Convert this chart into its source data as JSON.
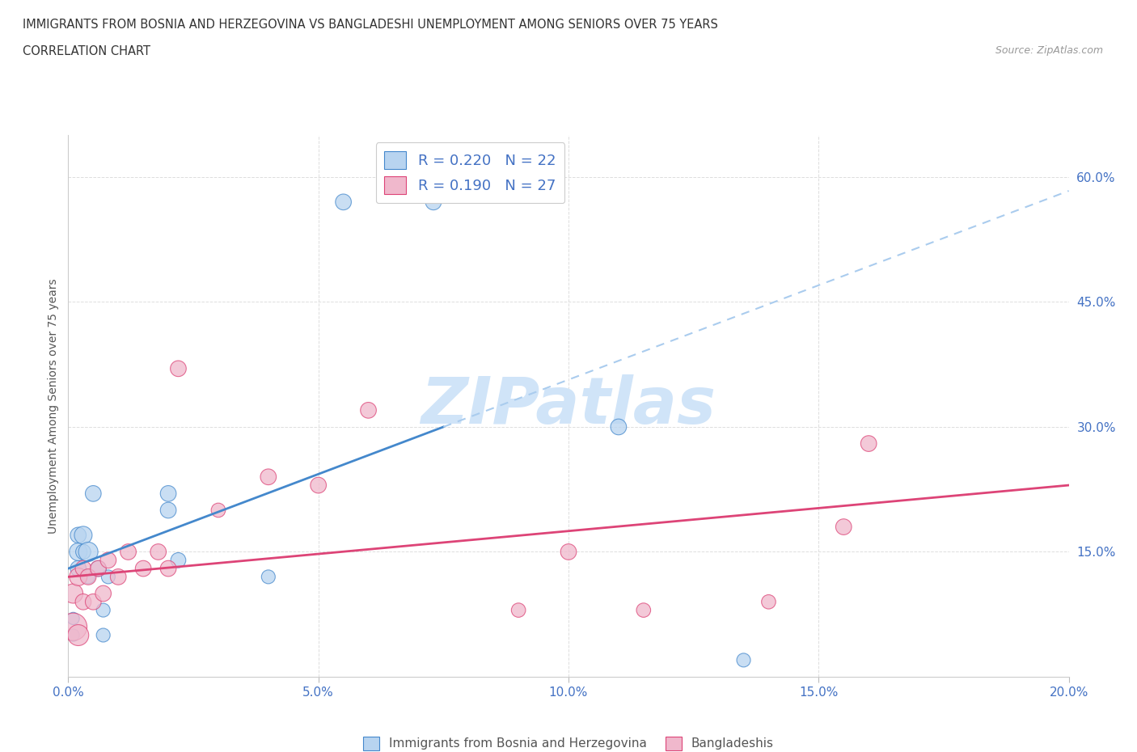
{
  "title": "IMMIGRANTS FROM BOSNIA AND HERZEGOVINA VS BANGLADESHI UNEMPLOYMENT AMONG SENIORS OVER 75 YEARS",
  "subtitle": "CORRELATION CHART",
  "source": "Source: ZipAtlas.com",
  "ylabel": "Unemployment Among Seniors over 75 years",
  "ytick_values": [
    0.0,
    0.15,
    0.3,
    0.45,
    0.6
  ],
  "ytick_labels": [
    "",
    "15.0%",
    "30.0%",
    "45.0%",
    "60.0%"
  ],
  "xtick_values": [
    0.0,
    0.05,
    0.1,
    0.15,
    0.2
  ],
  "xtick_labels": [
    "0.0%",
    "5.0%",
    "10.0%",
    "15.0%",
    "20.0%"
  ],
  "xlim": [
    0.0,
    0.2
  ],
  "ylim": [
    0.0,
    0.65
  ],
  "color_bosnia": "#b8d4f0",
  "color_bangladesh": "#f0b8cc",
  "color_line_bosnia": "#4488cc",
  "color_line_bangladesh": "#dd4477",
  "color_dashed_bosnia": "#aaccee",
  "color_text_blue": "#4472c4",
  "color_text_dark": "#333333",
  "color_source": "#999999",
  "background_color": "#ffffff",
  "grid_color": "#dddddd",
  "watermark": "ZIPatlas",
  "watermark_color": "#d0e4f8",
  "legend_r1": "R = 0.220",
  "legend_n1": "N = 22",
  "legend_r2": "R = 0.190",
  "legend_n2": "N = 27",
  "bos_line_x0": 0.0,
  "bos_line_y0": 0.13,
  "bos_line_x_solid_end": 0.075,
  "bos_line_slope": 2.267,
  "bang_line_x0": 0.0,
  "bang_line_y0": 0.12,
  "bang_line_x_end": 0.2,
  "bang_line_slope": 0.55,
  "bosnia_scatter_x": [
    0.001,
    0.001,
    0.002,
    0.002,
    0.002,
    0.003,
    0.003,
    0.004,
    0.004,
    0.005,
    0.006,
    0.007,
    0.007,
    0.008,
    0.02,
    0.02,
    0.022,
    0.04,
    0.055,
    0.073,
    0.11,
    0.135
  ],
  "bosnia_scatter_y": [
    0.05,
    0.07,
    0.13,
    0.15,
    0.17,
    0.15,
    0.17,
    0.12,
    0.15,
    0.22,
    0.13,
    0.05,
    0.08,
    0.12,
    0.2,
    0.22,
    0.14,
    0.12,
    0.57,
    0.57,
    0.3,
    0.02
  ],
  "bosnia_scatter_size": [
    120,
    120,
    200,
    250,
    200,
    180,
    250,
    150,
    300,
    200,
    200,
    150,
    150,
    150,
    200,
    200,
    180,
    150,
    200,
    200,
    200,
    150
  ],
  "bangladesh_scatter_x": [
    0.001,
    0.001,
    0.002,
    0.002,
    0.003,
    0.003,
    0.004,
    0.005,
    0.006,
    0.007,
    0.008,
    0.01,
    0.012,
    0.015,
    0.018,
    0.02,
    0.022,
    0.03,
    0.04,
    0.05,
    0.06,
    0.09,
    0.1,
    0.115,
    0.14,
    0.155,
    0.16
  ],
  "bangladesh_scatter_y": [
    0.06,
    0.1,
    0.05,
    0.12,
    0.09,
    0.13,
    0.12,
    0.09,
    0.13,
    0.1,
    0.14,
    0.12,
    0.15,
    0.13,
    0.15,
    0.13,
    0.37,
    0.2,
    0.24,
    0.23,
    0.32,
    0.08,
    0.15,
    0.08,
    0.09,
    0.18,
    0.28
  ],
  "bangladesh_scatter_size": [
    600,
    300,
    350,
    250,
    200,
    200,
    200,
    200,
    200,
    200,
    200,
    200,
    200,
    200,
    200,
    200,
    200,
    160,
    200,
    200,
    200,
    160,
    200,
    160,
    160,
    200,
    200
  ]
}
